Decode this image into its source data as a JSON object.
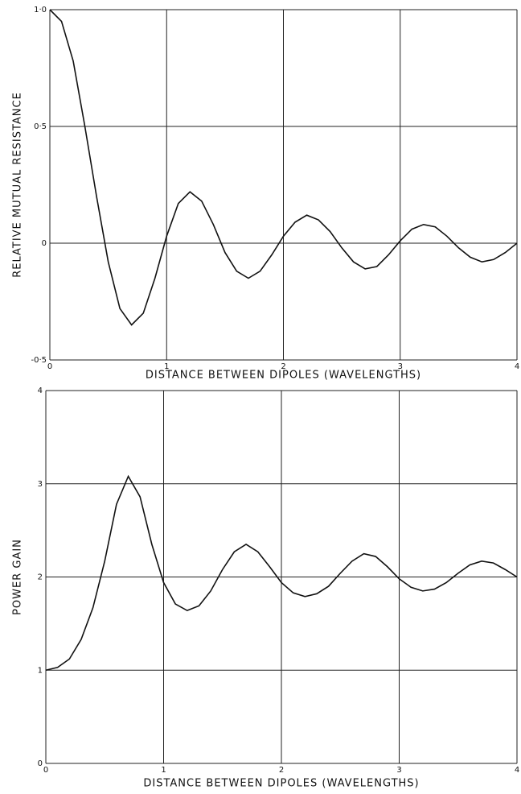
{
  "chart_data": [
    {
      "type": "line",
      "ylabel": "RELATIVE MUTUAL RESISTANCE",
      "xlabel": "DISTANCE BETWEEN DIPOLES (WAVELENGTHS)",
      "x": [
        0,
        0.1,
        0.2,
        0.3,
        0.4,
        0.5,
        0.6,
        0.7,
        0.8,
        0.9,
        1.0,
        1.1,
        1.2,
        1.3,
        1.4,
        1.5,
        1.6,
        1.7,
        1.8,
        1.9,
        2.0,
        2.1,
        2.2,
        2.3,
        2.4,
        2.5,
        2.6,
        2.7,
        2.8,
        2.9,
        3.0,
        3.1,
        3.2,
        3.3,
        3.4,
        3.5,
        3.6,
        3.7,
        3.8,
        3.9,
        4.0
      ],
      "values": [
        1.0,
        0.95,
        0.78,
        0.5,
        0.2,
        -0.08,
        -0.28,
        -0.35,
        -0.3,
        -0.15,
        0.03,
        0.17,
        0.22,
        0.18,
        0.08,
        -0.04,
        -0.12,
        -0.15,
        -0.12,
        -0.05,
        0.03,
        0.09,
        0.12,
        0.1,
        0.05,
        -0.02,
        -0.08,
        -0.11,
        -0.1,
        -0.05,
        0.01,
        0.06,
        0.08,
        0.07,
        0.03,
        -0.02,
        -0.06,
        -0.08,
        -0.07,
        -0.04,
        0.0
      ],
      "color": "#111111",
      "xlim": [
        0,
        4
      ],
      "xticks": [
        0,
        1,
        2,
        3,
        4
      ],
      "ylim": [
        -0.5,
        1
      ],
      "yticks": [
        {
          "value": -0.5,
          "label": "-0·5"
        },
        0,
        {
          "value": 0.5,
          "label": "0·5"
        },
        {
          "value": 1,
          "label": "1·0"
        }
      ],
      "grid": true
    },
    {
      "type": "line",
      "ylabel": "POWER GAIN",
      "xlabel": "DISTANCE BETWEEN DIPOLES (WAVELENGTHS)",
      "x": [
        0,
        0.1,
        0.2,
        0.3,
        0.4,
        0.5,
        0.6,
        0.7,
        0.8,
        0.9,
        1.0,
        1.1,
        1.2,
        1.3,
        1.4,
        1.5,
        1.6,
        1.7,
        1.8,
        1.9,
        2.0,
        2.1,
        2.2,
        2.3,
        2.4,
        2.5,
        2.6,
        2.7,
        2.8,
        2.9,
        3.0,
        3.1,
        3.2,
        3.3,
        3.4,
        3.5,
        3.6,
        3.7,
        3.8,
        3.9,
        4.0
      ],
      "values": [
        1.0,
        1.03,
        1.12,
        1.33,
        1.67,
        2.17,
        2.78,
        3.08,
        2.86,
        2.35,
        1.94,
        1.71,
        1.64,
        1.69,
        1.85,
        2.08,
        2.27,
        2.35,
        2.27,
        2.11,
        1.94,
        1.83,
        1.79,
        1.82,
        1.9,
        2.04,
        2.17,
        2.25,
        2.22,
        2.11,
        1.98,
        1.89,
        1.85,
        1.87,
        1.94,
        2.04,
        2.13,
        2.17,
        2.15,
        2.08,
        2.0
      ],
      "color": "#111111",
      "xlim": [
        0,
        4
      ],
      "xticks": [
        0,
        1,
        2,
        3,
        4
      ],
      "ylim": [
        0,
        4
      ],
      "yticks": [
        0,
        1,
        2,
        3,
        4
      ],
      "grid": true
    }
  ]
}
